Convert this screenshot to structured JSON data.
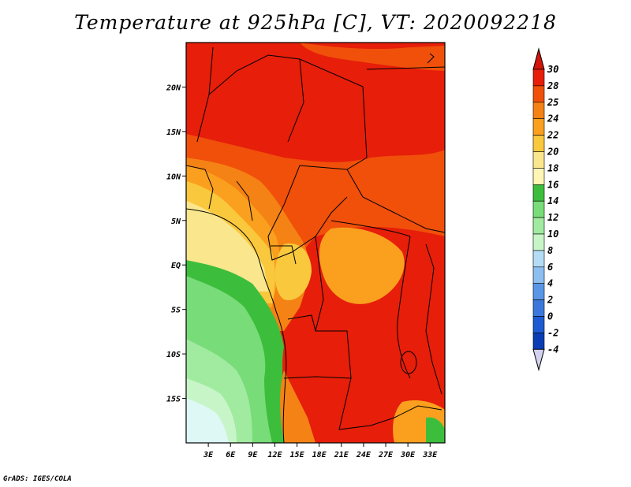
{
  "title": "Temperature at 925hPa [C], VT: 2020092218",
  "credit": "GrADS: IGES/COLA",
  "map": {
    "lon_range": [
      0,
      35
    ],
    "lat_range": [
      -20,
      25
    ],
    "x_ticks": [
      "3E",
      "6E",
      "9E",
      "12E",
      "15E",
      "18E",
      "21E",
      "24E",
      "27E",
      "30E",
      "33E"
    ],
    "y_ticks": [
      "20N",
      "15N",
      "10N",
      "5N",
      "EQ",
      "5S",
      "10S",
      "15S"
    ]
  },
  "colorbar": {
    "labels": [
      "30",
      "28",
      "25",
      "24",
      "22",
      "20",
      "18",
      "16",
      "14",
      "12",
      "10",
      "8",
      "6",
      "4",
      "2",
      "0",
      "-2",
      "-4"
    ],
    "colors": [
      "#e61e0a",
      "#f0500a",
      "#f58214",
      "#faa01e",
      "#fac83c",
      "#fae68c",
      "#fff5b4",
      "#3cbe3c",
      "#78dc78",
      "#a0eba0",
      "#c8f5c8",
      "#b4dcf5",
      "#8cbef0",
      "#5a96e6",
      "#3c78dc",
      "#1e5ad2",
      "#0a3cb4",
      "#08108c"
    ],
    "top_cap_color": "#d2140a",
    "bottom_cap_color": "#d2d2f0"
  }
}
